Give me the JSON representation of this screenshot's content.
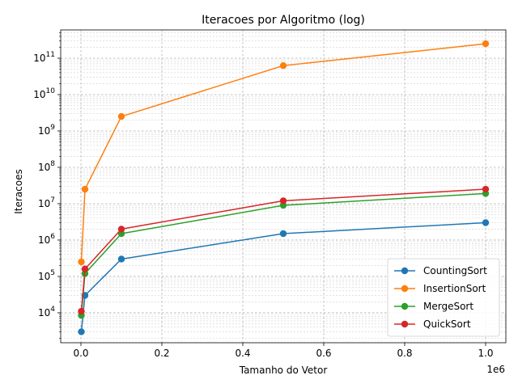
{
  "chart_data": {
    "type": "line",
    "title": "Iteracoes por Algoritmo (log)",
    "xlabel": "Tamanho do Vetor",
    "ylabel": "Iteracoes",
    "x_offset_text": "1e6",
    "yscale": "log",
    "xlim": [
      -50000,
      1050000
    ],
    "ylim": [
      1500,
      600000000000
    ],
    "grid": true,
    "legend_position": "lower-right",
    "x_ticks": [
      0,
      200000,
      400000,
      600000,
      800000,
      1000000
    ],
    "x_tick_labels": [
      "0.0",
      "0.2",
      "0.4",
      "0.6",
      "0.8",
      "1.0"
    ],
    "y_ticks": [
      10000,
      100000,
      1000000,
      10000000,
      100000000,
      1000000000,
      10000000000,
      100000000000
    ],
    "y_tick_exponents": [
      "4",
      "5",
      "6",
      "7",
      "8",
      "9",
      "10",
      "11"
    ],
    "x": [
      1000,
      10000,
      100000,
      500000,
      1000000
    ],
    "series": [
      {
        "name": "CountingSort",
        "color": "#1f77b4",
        "values": [
          3000,
          30000,
          300000,
          1500000,
          3000000
        ]
      },
      {
        "name": "InsertionSort",
        "color": "#ff7f0e",
        "values": [
          250000,
          25000000,
          2500000000,
          62500000000,
          250000000000
        ]
      },
      {
        "name": "MergeSort",
        "color": "#2ca02c",
        "values": [
          8500,
          120000,
          1500000,
          9000000,
          19000000
        ]
      },
      {
        "name": "QuickSort",
        "color": "#d62728",
        "values": [
          11000,
          160000,
          2000000,
          12000000,
          25000000
        ]
      }
    ]
  }
}
